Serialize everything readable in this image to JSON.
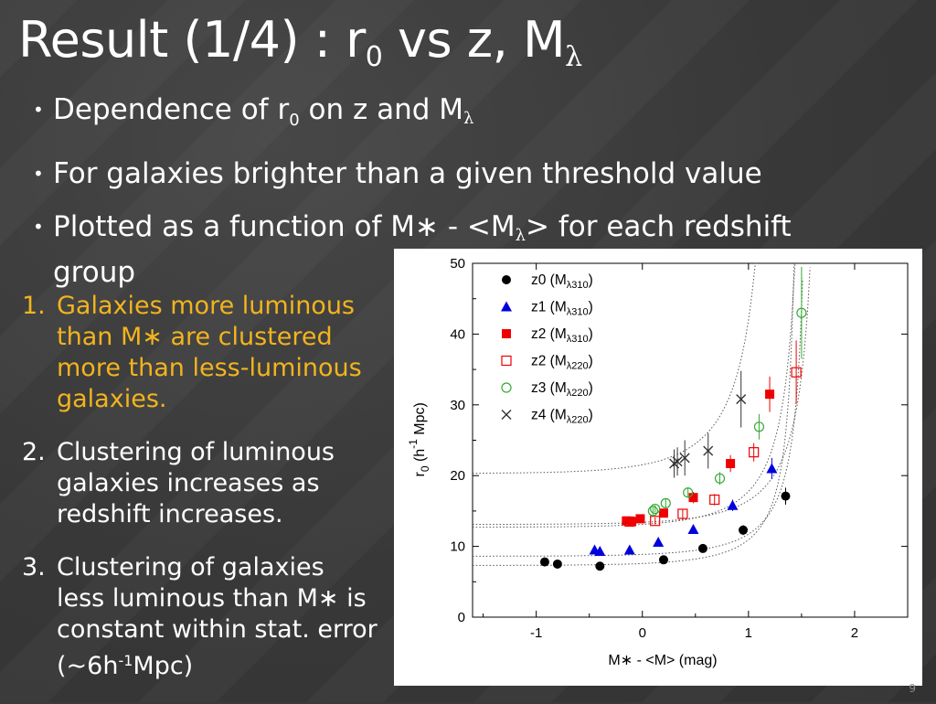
{
  "title": {
    "main": "Result (1/4) : r",
    "sub": "0",
    "rest": " vs z, M",
    "lambda": "λ"
  },
  "bullets": [
    {
      "a": "Dependence of r",
      "sub": "0",
      "b": " on z and M",
      "lambda": "λ"
    },
    {
      "text": "For galaxies brighter than a given threshold value"
    },
    {
      "a": "Plotted as a function of M∗ - <M",
      "lambda": "λ",
      "b": "> for each redshift",
      "c": "group"
    }
  ],
  "findings": [
    {
      "num": "1.",
      "text": "Galaxies more luminous than M∗ are clustered more than less-luminous galaxies."
    },
    {
      "num": "2.",
      "text": "Clustering of luminous galaxies increases as redshift increases."
    },
    {
      "num": "3.",
      "a": "Clustering of galaxies less luminous than M∗ is constant within stat. error (~6h",
      "sup": "-1",
      "b": "Mpc)"
    }
  ],
  "page_number": "9",
  "colors": {
    "title": "#ffffff",
    "highlight": "#f2b41e",
    "z0": "#000000",
    "z1": "#0000dd",
    "z2": "#ee0000",
    "z3": "#33aa33",
    "z4": "#333333"
  },
  "chart_data": {
    "type": "scatter",
    "xlabel": "M∗ - <M> (mag)",
    "ylabel": "r0 (h-1 Mpc)",
    "ylabel_parts": {
      "r": "r",
      "sub": "0",
      "open": " (h",
      "sup": "-1",
      "close": " Mpc)"
    },
    "xlim": [
      -1.6,
      2.5
    ],
    "ylim": [
      0,
      50
    ],
    "xticks": [
      -1,
      0,
      1,
      2
    ],
    "yticks": [
      0,
      10,
      20,
      30,
      40,
      50
    ],
    "grid": false,
    "legend_position": "top-left",
    "series": [
      {
        "name": "z0 (Mλ310)",
        "label": "z0 (M",
        "lam": "λ310",
        "close": ")",
        "marker": "filled-circle",
        "color": "#000000",
        "points": [
          [
            -0.92,
            7.8
          ],
          [
            -0.8,
            7.5
          ],
          [
            -0.4,
            7.2
          ],
          [
            0.2,
            8.1
          ],
          [
            0.57,
            9.7
          ],
          [
            0.95,
            12.3
          ],
          [
            1.35,
            17.1
          ]
        ],
        "err": [
          0.4,
          0.4,
          0.4,
          0.4,
          0.5,
          0.7,
          1.2
        ]
      },
      {
        "name": "z1 (Mλ310)",
        "label": "z1 (M",
        "lam": "λ310",
        "close": ")",
        "marker": "filled-triangle",
        "color": "#0000dd",
        "points": [
          [
            -0.45,
            9.5
          ],
          [
            -0.4,
            9.3
          ],
          [
            -0.12,
            9.5
          ],
          [
            0.15,
            10.6
          ],
          [
            0.48,
            12.4
          ],
          [
            0.85,
            15.8
          ],
          [
            1.22,
            21.0
          ]
        ],
        "err": [
          0.4,
          0.4,
          0.4,
          0.5,
          0.6,
          0.8,
          1.5
        ]
      },
      {
        "name": "z2 (Mλ310)",
        "label": "z2 (M",
        "lam": "λ310",
        "close": ")",
        "marker": "filled-square",
        "color": "#ee0000",
        "points": [
          [
            -0.15,
            13.6
          ],
          [
            -0.1,
            13.5
          ],
          [
            -0.02,
            13.9
          ],
          [
            0.2,
            14.7
          ],
          [
            0.48,
            16.9
          ],
          [
            0.83,
            21.7
          ],
          [
            1.2,
            31.5
          ]
        ],
        "err": [
          0.5,
          0.5,
          0.5,
          0.6,
          0.8,
          1.2,
          2.5
        ]
      },
      {
        "name": "z2 (Mλ220)",
        "label": "z2 (M",
        "lam": "λ220",
        "close": ")",
        "marker": "open-square",
        "color": "#ee0000",
        "points": [
          [
            -0.12,
            13.5
          ],
          [
            0.12,
            13.6
          ],
          [
            0.38,
            14.6
          ],
          [
            0.68,
            16.6
          ],
          [
            1.05,
            23.3
          ],
          [
            1.45,
            34.6
          ]
        ],
        "err": [
          0.5,
          0.5,
          0.6,
          0.8,
          1.3,
          4.5
        ]
      },
      {
        "name": "z3 (Mλ220)",
        "label": "z3 (M",
        "lam": "λ220",
        "close": ")",
        "marker": "open-circle",
        "color": "#33aa33",
        "points": [
          [
            0.1,
            15.0
          ],
          [
            0.12,
            15.3
          ],
          [
            0.22,
            16.1
          ],
          [
            0.43,
            17.6
          ],
          [
            0.73,
            19.6
          ],
          [
            1.1,
            26.9
          ],
          [
            1.5,
            43.0
          ]
        ],
        "err": [
          0.5,
          0.5,
          0.6,
          0.7,
          0.9,
          1.8,
          6.5
        ]
      },
      {
        "name": "z4 (Mλ220)",
        "label": "z4 (M",
        "lam": "λ220",
        "close": ")",
        "marker": "cross",
        "color": "#333333",
        "points": [
          [
            0.3,
            21.7
          ],
          [
            0.33,
            22.0
          ],
          [
            0.4,
            22.5
          ],
          [
            0.62,
            23.5
          ],
          [
            0.93,
            30.8
          ]
        ],
        "err": [
          2.0,
          2.0,
          2.5,
          2.5,
          4.0
        ]
      }
    ],
    "fit_curves": [
      {
        "y0": 7.3,
        "M0": 1.5
      },
      {
        "y0": 8.6,
        "M0": 1.6
      },
      {
        "y0": 12.7,
        "M0": 1.57
      },
      {
        "y0": 13.1,
        "M0": 1.72
      },
      {
        "y0": 20.3,
        "M0": 1.3
      }
    ]
  }
}
